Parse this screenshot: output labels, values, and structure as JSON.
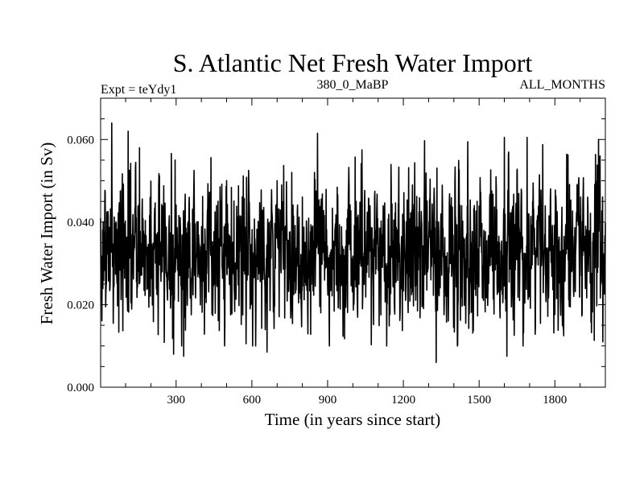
{
  "chart_data": {
    "type": "line",
    "title": "S. Atlantic Net Fresh Water Import",
    "subtitle_left": "Expt = teYdy1",
    "subtitle_center": "380_0_MaBP",
    "subtitle_right": "ALL_MONTHS",
    "xlabel": "Time (in years since start)",
    "ylabel": "Fresh Water Import (in Sv)",
    "xlim": [
      1,
      2000
    ],
    "ylim": [
      0.0,
      0.07
    ],
    "xticks": [
      300,
      600,
      900,
      1200,
      1500,
      1800
    ],
    "xtick_labels": [
      "300",
      "600",
      "900",
      "1200",
      "1500",
      "1800"
    ],
    "yticks": [
      0.0,
      0.02,
      0.04,
      0.06
    ],
    "ytick_labels": [
      "0.000",
      "0.020",
      "0.040",
      "0.060"
    ],
    "grid": false,
    "series": [
      {
        "name": "Net Fresh Water Import",
        "color": "#000000",
        "mean": 0.033,
        "n_points": 2000,
        "min": 0.006,
        "max": 0.064,
        "extremes": [
          {
            "x": 45,
            "y": 0.064
          },
          {
            "x": 110,
            "y": 0.062
          },
          {
            "x": 155,
            "y": 0.058
          },
          {
            "x": 290,
            "y": 0.008
          },
          {
            "x": 330,
            "y": 0.0075
          },
          {
            "x": 660,
            "y": 0.0085
          },
          {
            "x": 860,
            "y": 0.0615
          },
          {
            "x": 1330,
            "y": 0.006
          },
          {
            "x": 1610,
            "y": 0.0075
          },
          {
            "x": 1600,
            "y": 0.0605
          },
          {
            "x": 1690,
            "y": 0.0605
          },
          {
            "x": 1990,
            "y": 0.011
          }
        ]
      }
    ]
  }
}
